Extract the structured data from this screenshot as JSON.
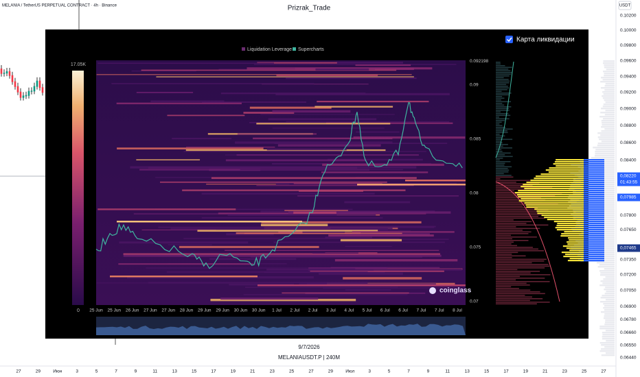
{
  "header": {
    "symbol": "MELANIA / TetherUS PERPETUAL CONTRACT · 4h · Binance",
    "author": "Prizrak_Trade",
    "currency": "USDT"
  },
  "price_axis": {
    "labels": [
      "0.10200",
      "0.10000",
      "0.09800",
      "0.09600",
      "0.09400",
      "0.09200",
      "0.09000",
      "0.08800",
      "0.08600",
      "0.08400",
      "0.07800",
      "0.07650",
      "0.07350",
      "0.07200",
      "0.07050",
      "0.06900",
      "0.06780",
      "0.06660",
      "0.06550",
      "0.06440"
    ]
  },
  "price_badges": [
    {
      "label": "0,08220",
      "sub": "01:43:55"
    },
    {
      "label": "0,07985"
    },
    {
      "label": "0,07465"
    }
  ],
  "time_axis": {
    "labels": [
      "27",
      "29",
      "Июн",
      "3",
      "5",
      "7",
      "9",
      "11",
      "13",
      "15",
      "17",
      "19",
      "21",
      "23",
      "25",
      "27",
      "29",
      "Июл",
      "3",
      "5",
      "7",
      "9",
      "11",
      "13",
      "15",
      "17",
      "19",
      "21",
      "23",
      "25",
      "27"
    ]
  },
  "liquidation_panel": {
    "legend": [
      "Liquidation Leverage",
      "Supercharts"
    ],
    "toggle": "Карта ликвидации",
    "scale_max": "17.05K",
    "scale_min": "0",
    "price_ticks": [
      "0.092198",
      "0.09",
      "0.085",
      "0.08",
      "0.075",
      "0.07"
    ],
    "dates": [
      "25 Jun",
      "25 Jun",
      "26 Jun",
      "27 Jun",
      "27 Jun",
      "28 Jun",
      "29 Jun",
      "29 Jun",
      "30 Jun",
      "30 Jun",
      "1 Jul",
      "2 Jul",
      "2 Jul",
      "3 Jul",
      "4 Jul",
      "5 Jul",
      "6 Jul",
      "6 Jul",
      "7 Jul",
      "7 Jul",
      "8 Jul"
    ],
    "watermark": "coinglass",
    "date": "9/7/2026",
    "symbol": "MELANIAUSDT.P | 240M"
  }
}
